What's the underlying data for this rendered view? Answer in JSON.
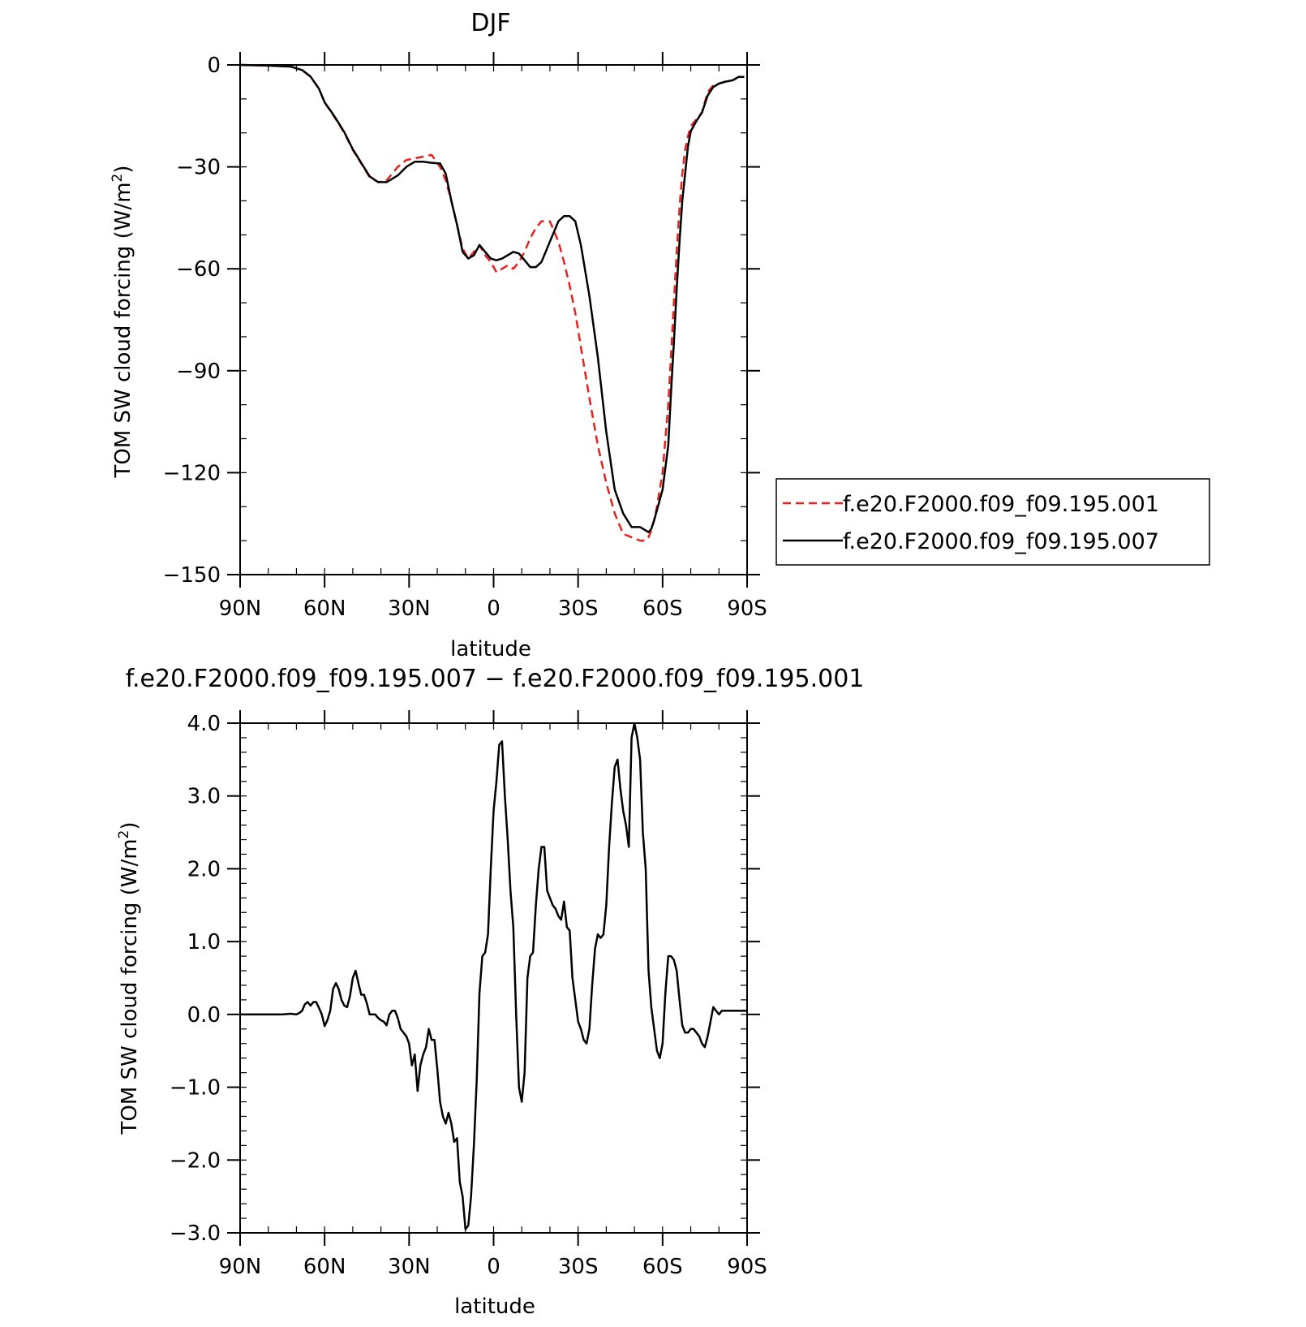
{
  "colors": {
    "exp001": "#e8201e",
    "exp007": "#000000",
    "axis": "#000000"
  },
  "chart_data": [
    {
      "type": "line",
      "title": "DJF",
      "xlabel": "latitude",
      "ylabel": "TOM SW cloud forcing (W/m²)",
      "ylabel_main": "TOM SW cloud forcing (W/m",
      "ylabel_sup": "2",
      "ylabel_close": ")",
      "xlim": [
        90,
        -90
      ],
      "ylim": [
        -150,
        0
      ],
      "x_ticks": [
        90,
        60,
        30,
        0,
        -30,
        -60,
        -90
      ],
      "x_tick_labels": [
        "90N",
        "60N",
        "30N",
        "0",
        "30S",
        "60S",
        "90S"
      ],
      "y_ticks": [
        0,
        -30,
        -60,
        -90,
        -120,
        -150
      ],
      "y_tick_labels": [
        "0",
        "−30",
        "−60",
        "−90",
        "−120",
        "−150"
      ],
      "legend_position": "right",
      "series": [
        {
          "name": "f.e20.F2000.f09_f09.195.001",
          "style": "dashed",
          "color": "#e8201e",
          "x": [
            90,
            80,
            72,
            68,
            65,
            62,
            60,
            58,
            56,
            53,
            50,
            47,
            44,
            41,
            38,
            36,
            34,
            31,
            28,
            25,
            22,
            19,
            17,
            15,
            13,
            11,
            9,
            7,
            5,
            3,
            1,
            -1,
            -3,
            -5,
            -7,
            -9,
            -11,
            -13,
            -15,
            -17,
            -20,
            -23,
            -25,
            -27,
            -29,
            -31,
            -34,
            -37,
            -40,
            -43,
            -46,
            -49,
            -52,
            -54,
            -55,
            -56,
            -57,
            -58,
            -60,
            -62,
            -63,
            -64,
            -65,
            -66,
            -67,
            -68,
            -69,
            -70,
            -72,
            -74,
            -76,
            -78,
            -80,
            -82,
            -85,
            -87,
            -89
          ],
          "y": [
            0,
            -0.2,
            -0.5,
            -1.5,
            -3.5,
            -7,
            -11,
            -13.5,
            -16,
            -20,
            -25,
            -29,
            -33,
            -34.5,
            -34,
            -32,
            -30,
            -28,
            -27.5,
            -27,
            -26.5,
            -30,
            -34,
            -40,
            -47,
            -54,
            -57,
            -55,
            -53,
            -56,
            -58,
            -61,
            -60,
            -59,
            -60,
            -58,
            -55,
            -51,
            -48,
            -46,
            -46,
            -52,
            -58,
            -65,
            -73,
            -83,
            -98,
            -112,
            -123,
            -132,
            -138,
            -139,
            -140,
            -140,
            -139,
            -137,
            -134,
            -130,
            -120,
            -100,
            -85,
            -70,
            -55,
            -42,
            -32,
            -25,
            -21,
            -18,
            -16,
            -14,
            -8,
            -6,
            -5.5,
            -5,
            -4.5,
            -3.5,
            -3.5
          ]
        },
        {
          "name": "f.e20.F2000.f09_f09.195.007",
          "style": "solid",
          "color": "#000000",
          "x": [
            90,
            80,
            72,
            68,
            65,
            62,
            60,
            58,
            56,
            53,
            50,
            47,
            44,
            41,
            38,
            36,
            34,
            31,
            28,
            25,
            22,
            19,
            17,
            15,
            13,
            11,
            9,
            7,
            5,
            3,
            1,
            -1,
            -3,
            -5,
            -7,
            -9,
            -11,
            -13,
            -15,
            -17,
            -20,
            -23,
            -25,
            -27,
            -29,
            -31,
            -34,
            -37,
            -40,
            -43,
            -46,
            -49,
            -52,
            -54,
            -55,
            -56,
            -57,
            -58,
            -60,
            -62,
            -63,
            -64,
            -65,
            -66,
            -67,
            -68,
            -69,
            -70,
            -72,
            -74,
            -76,
            -78,
            -80,
            -82,
            -85,
            -87,
            -89
          ],
          "y": [
            0,
            -0.2,
            -0.5,
            -1.5,
            -3.4,
            -7,
            -11,
            -13.3,
            -15.8,
            -19.8,
            -24.8,
            -28.8,
            -32.8,
            -34.5,
            -34.5,
            -33.5,
            -32.5,
            -30,
            -28.5,
            -28.5,
            -28.8,
            -29,
            -32,
            -40,
            -47,
            -55,
            -57,
            -56,
            -53,
            -55,
            -57,
            -57.5,
            -57,
            -56,
            -55,
            -55.5,
            -57.5,
            -59.5,
            -59.5,
            -58,
            -52,
            -46,
            -44.5,
            -44.5,
            -46,
            -53,
            -68,
            -86,
            -108,
            -125,
            -132,
            -136,
            -136,
            -137,
            -137.5,
            -136.5,
            -134,
            -131,
            -125,
            -112,
            -96,
            -82,
            -66,
            -52,
            -40,
            -32,
            -24,
            -19.5,
            -16.5,
            -14,
            -9,
            -6.5,
            -5.5,
            -5,
            -4.5,
            -3.5,
            -3.5
          ]
        }
      ]
    },
    {
      "type": "line",
      "title": "f.e20.F2000.f09_f09.195.007 − f.e20.F2000.f09_f09.195.001",
      "xlabel": "latitude",
      "ylabel": "TOM SW cloud forcing (W/m²)",
      "ylabel_main": "TOM SW cloud forcing (W/m",
      "ylabel_sup": "2",
      "ylabel_close": ")",
      "xlim": [
        90,
        -90
      ],
      "ylim": [
        -3.0,
        4.0
      ],
      "x_ticks": [
        90,
        60,
        30,
        0,
        -30,
        -60,
        -90
      ],
      "x_tick_labels": [
        "90N",
        "60N",
        "30N",
        "0",
        "30S",
        "60S",
        "90S"
      ],
      "y_ticks": [
        4,
        3,
        2,
        1,
        0,
        -1,
        -2,
        -3
      ],
      "y_tick_labels": [
        "4.0",
        "3.0",
        "2.0",
        "1.0",
        "0.0",
        "−1.0",
        "−2.0",
        "−3.0"
      ],
      "series": [
        {
          "name": "",
          "style": "solid",
          "color": "#000000",
          "x": [
            90,
            80,
            75,
            72,
            70,
            69,
            68,
            67,
            66,
            65,
            64,
            63,
            62,
            61,
            60,
            59,
            58,
            57,
            56,
            55,
            54,
            53,
            52,
            51,
            50,
            49,
            48,
            47,
            46,
            45,
            44,
            43,
            42,
            41,
            40,
            39,
            38,
            37,
            36,
            35,
            34,
            33,
            32,
            31,
            30,
            29,
            28,
            27,
            26,
            25,
            24,
            23,
            22,
            21,
            20,
            19,
            18,
            17,
            16,
            15,
            14,
            13,
            12,
            11,
            10,
            9,
            8,
            7,
            6,
            5,
            4,
            3,
            2,
            1,
            0,
            -1,
            -2,
            -3,
            -4,
            -5,
            -6,
            -7,
            -8,
            -9,
            -10,
            -11,
            -12,
            -13,
            -14,
            -15,
            -16,
            -17,
            -18,
            -19,
            -20,
            -21,
            -22,
            -23,
            -24,
            -25,
            -26,
            -27,
            -28,
            -29,
            -30,
            -31,
            -32,
            -33,
            -34,
            -35,
            -36,
            -37,
            -38,
            -39,
            -40,
            -41,
            -42,
            -43,
            -44,
            -45,
            -46,
            -47,
            -48,
            -49,
            -50,
            -51,
            -52,
            -53,
            -54,
            -55,
            -56,
            -57,
            -58,
            -59,
            -60,
            -61,
            -62,
            -63,
            -64,
            -65,
            -66,
            -67,
            -68,
            -69,
            -70,
            -71,
            -72,
            -73,
            -74,
            -75,
            -76,
            -77,
            -78,
            -79,
            -80,
            -81,
            -82,
            -83,
            -84,
            -85,
            -86,
            -87,
            -88,
            -89,
            -90
          ],
          "y": [
            0.0,
            0.0,
            0.0,
            0.01,
            0.0,
            0.02,
            0.05,
            0.14,
            0.17,
            0.12,
            0.17,
            0.17,
            0.09,
            0.0,
            -0.16,
            -0.08,
            0.05,
            0.35,
            0.43,
            0.35,
            0.2,
            0.12,
            0.1,
            0.25,
            0.5,
            0.6,
            0.43,
            0.27,
            0.27,
            0.15,
            0.0,
            0.0,
            0.0,
            -0.05,
            -0.08,
            -0.1,
            -0.15,
            0.0,
            0.05,
            0.05,
            -0.05,
            -0.2,
            -0.25,
            -0.3,
            -0.4,
            -0.7,
            -0.55,
            -1.05,
            -0.7,
            -0.55,
            -0.45,
            -0.2,
            -0.35,
            -0.35,
            -0.75,
            -1.2,
            -1.4,
            -1.5,
            -1.35,
            -1.5,
            -1.75,
            -1.7,
            -2.3,
            -2.5,
            -2.95,
            -2.9,
            -2.5,
            -1.8,
            -0.9,
            0.3,
            0.8,
            0.85,
            1.1,
            2.0,
            2.8,
            3.2,
            3.7,
            3.75,
            3.0,
            2.4,
            1.7,
            1.2,
            0.0,
            -1.0,
            -1.2,
            -0.8,
            0.5,
            0.8,
            0.85,
            1.5,
            2.0,
            2.3,
            2.3,
            1.7,
            1.6,
            1.5,
            1.45,
            1.35,
            1.3,
            1.55,
            1.2,
            1.15,
            0.5,
            0.2,
            -0.1,
            -0.2,
            -0.35,
            -0.4,
            -0.2,
            0.4,
            0.9,
            1.1,
            1.05,
            1.1,
            1.5,
            2.3,
            2.9,
            3.4,
            3.5,
            3.1,
            2.8,
            2.6,
            2.3,
            3.8,
            4.0,
            3.8,
            3.5,
            2.5,
            2.0,
            0.6,
            0.1,
            -0.2,
            -0.5,
            -0.6,
            -0.4,
            0.3,
            0.8,
            0.8,
            0.75,
            0.6,
            0.2,
            -0.15,
            -0.25,
            -0.25,
            -0.2,
            -0.2,
            -0.25,
            -0.3,
            -0.4,
            -0.45,
            -0.3,
            -0.1,
            0.1,
            0.05,
            0.0,
            0.05,
            0.05,
            0.05,
            0.05,
            0.05,
            0.05,
            0.05,
            0.05,
            0.05,
            0.05
          ]
        }
      ]
    }
  ]
}
